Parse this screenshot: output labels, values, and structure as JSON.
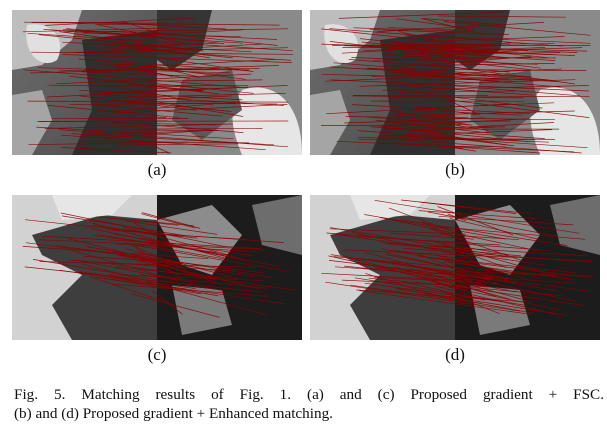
{
  "figure": {
    "panels": [
      {
        "id": "a",
        "label": "(a)"
      },
      {
        "id": "b",
        "label": "(b)"
      },
      {
        "id": "c",
        "label": "(c)"
      },
      {
        "id": "d",
        "label": "(d)"
      }
    ],
    "caption_line1": "Fig. 5. Matching results of Fig. 1. (a) and (c) Proposed gradient + FSC.",
    "caption_line2": "(b) and (d) Proposed gradient + Enhanced matching.",
    "colors": {
      "match_line": "#8b0000",
      "sea_dark": "#2b2b2b",
      "ice_light": "#cfcfcf"
    }
  }
}
